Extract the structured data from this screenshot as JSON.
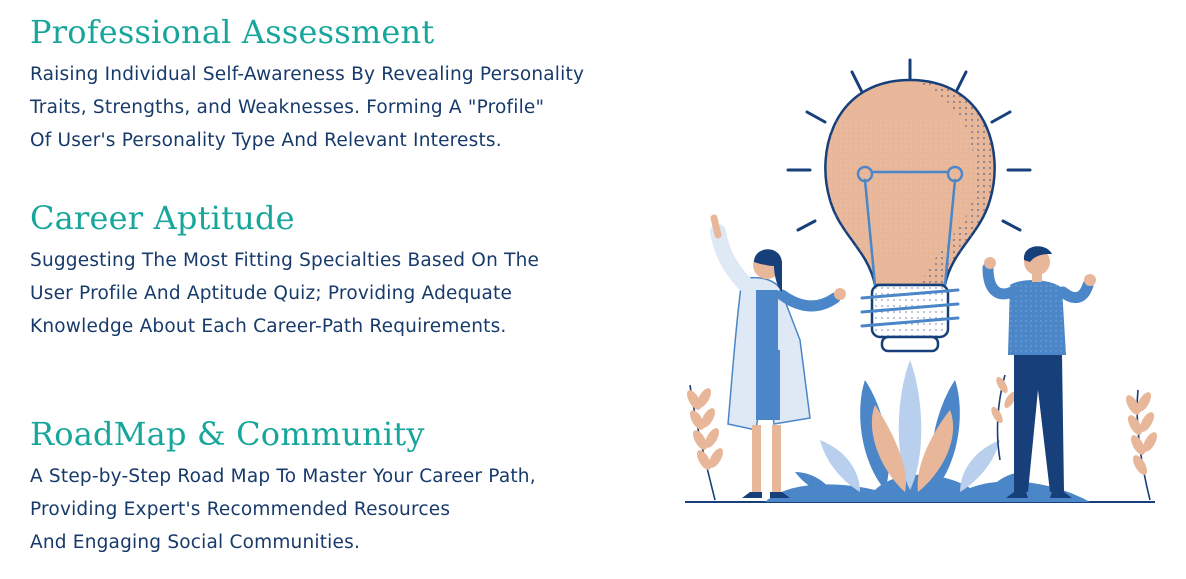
{
  "sections": [
    {
      "title": "Professional Assessment",
      "lines": [
        "Raising Individual Self-Awareness By Revealing Personality",
        "Traits, Strengths, and Weaknesses. Forming A \"Profile\"",
        "Of User's Personality Type And Relevant Interests."
      ]
    },
    {
      "title": "Career Aptitude",
      "lines": [
        "Suggesting The Most Fitting Specialties Based On The",
        "User Profile And Aptitude Quiz; Providing Adequate",
        "Knowledge About Each Career-Path Requirements."
      ]
    },
    {
      "title": "RoadMap & Community",
      "lines": [
        "A Step-by-Step Road Map To Master Your Career Path,",
        "Providing Expert's Recommended Resources",
        "And Engaging Social Communities."
      ]
    }
  ],
  "colors": {
    "title": "#17a69c",
    "body": "#173a6b",
    "bulb": "#e8b79a",
    "navy": "#173f7a",
    "blue": "#4a86c8",
    "light_blue": "#b9cfee"
  },
  "illustration": {
    "icon": "lightbulb-ideas-icon"
  }
}
